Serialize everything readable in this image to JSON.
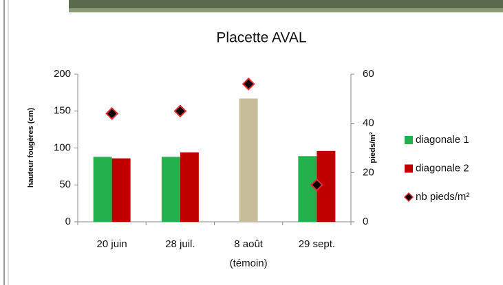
{
  "chart_data": {
    "type": "bar",
    "title": "Placette AVAL",
    "y_label": "hauteur fougères (cm)",
    "y2_label": "pieds/m²",
    "categories": [
      [
        "20 juin"
      ],
      [
        "28 juil."
      ],
      [
        "8 août",
        "(témoin)"
      ],
      [
        "29 sept."
      ]
    ],
    "series": [
      {
        "name": "diagonale 1",
        "color": "#22b14c",
        "point_colors": [
          "#22b14c",
          "#22b14c",
          "#c8bd9a",
          "#22b14c"
        ],
        "values": [
          88,
          88,
          167,
          89
        ]
      },
      {
        "name": "diagonale 2",
        "color": "#c00000",
        "values": [
          86,
          94,
          null,
          96
        ]
      },
      {
        "name": "nb pieds/m²",
        "type": "scatter",
        "marker": "diamond",
        "color": "#000000",
        "axis": "y2",
        "values": [
          44,
          45,
          56,
          15
        ]
      }
    ],
    "ylim": [
      0,
      200
    ],
    "yticks": [
      0,
      50,
      100,
      150,
      200
    ],
    "y2lim": [
      0,
      60
    ],
    "y2ticks": [
      0,
      20,
      40,
      60
    ],
    "legend": "right"
  }
}
